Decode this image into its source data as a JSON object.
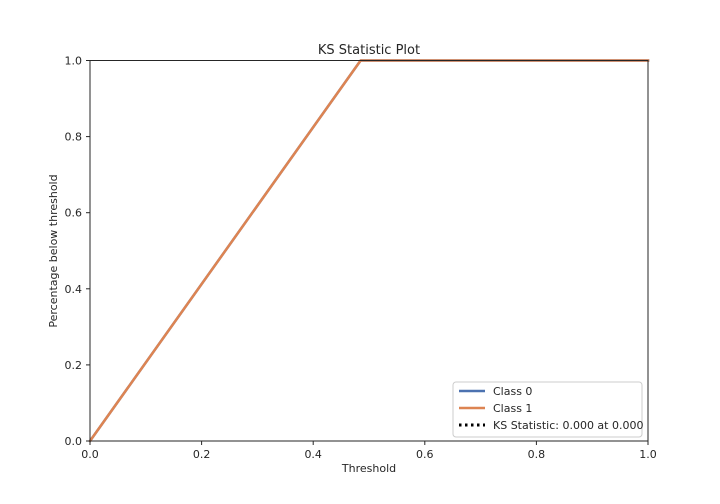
{
  "chart_data": {
    "type": "line",
    "title": "KS Statistic Plot",
    "xlabel": "Threshold",
    "ylabel": "Percentage below threshold",
    "xlim": [
      0.0,
      1.0
    ],
    "ylim": [
      0.0,
      1.0
    ],
    "xticks": [
      "0.0",
      "0.2",
      "0.4",
      "0.6",
      "0.8",
      "1.0"
    ],
    "yticks": [
      "0.0",
      "0.2",
      "0.4",
      "0.6",
      "0.8",
      "1.0"
    ],
    "grid": false,
    "legend_position": "lower-right",
    "series": [
      {
        "name": "Class 0",
        "color": "#4c72b0",
        "style": "solid",
        "x": [
          0.0,
          0.485,
          1.0
        ],
        "y": [
          0.0,
          1.0,
          1.0
        ]
      },
      {
        "name": "Class 1",
        "color": "#dd8452",
        "style": "solid",
        "x": [
          0.0,
          0.485,
          1.0
        ],
        "y": [
          0.0,
          1.0,
          1.0
        ]
      }
    ],
    "legend_entries": [
      {
        "label": "Class 0",
        "color": "#4c72b0",
        "style": "solid"
      },
      {
        "label": "Class 1",
        "color": "#dd8452",
        "style": "solid"
      },
      {
        "label": "KS Statistic: 0.000 at 0.000",
        "color": "#000000",
        "style": "dotted"
      }
    ]
  }
}
